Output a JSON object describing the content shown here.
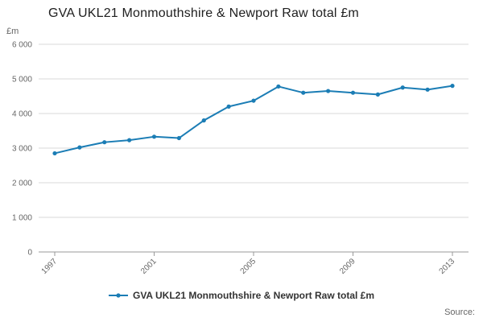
{
  "title": "GVA UKL21 Monmouthshire & Newport Raw total £m",
  "y_axis_unit": "£m",
  "source_label": "Source:",
  "legend_label": "GVA UKL21 Monmouthshire & Newport Raw total £m",
  "colors": {
    "line": "#1b7db5",
    "grid": "#d9d9d9",
    "axis": "#999999",
    "tick_text": "#666666",
    "title_text": "#202020",
    "background": "#ffffff"
  },
  "chart_data": {
    "type": "line",
    "title": "GVA UKL21 Monmouthshire & Newport Raw total £m",
    "ylabel": "£m",
    "xlabel": "",
    "grid": true,
    "legend_position": "bottom",
    "marker": "circle",
    "ylim": [
      0,
      6000
    ],
    "x": [
      1997,
      1998,
      1999,
      2000,
      2001,
      2002,
      2003,
      2004,
      2005,
      2006,
      2007,
      2008,
      2009,
      2010,
      2011,
      2012,
      2013
    ],
    "values": [
      2850,
      3020,
      3170,
      3230,
      3330,
      3290,
      3800,
      4200,
      4370,
      4780,
      4600,
      4650,
      4600,
      4550,
      4750,
      4690,
      4800
    ],
    "series": [
      {
        "name": "GVA UKL21 Monmouthshire & Newport Raw total £m",
        "values": [
          2850,
          3020,
          3170,
          3230,
          3330,
          3290,
          3800,
          4200,
          4370,
          4780,
          4600,
          4650,
          4600,
          4550,
          4750,
          4690,
          4800
        ]
      }
    ],
    "y_ticks": [
      0,
      1000,
      2000,
      3000,
      4000,
      5000,
      6000
    ],
    "y_tick_labels": [
      "0",
      "1 000",
      "2 000",
      "3 000",
      "4 000",
      "5 000",
      "6 000"
    ],
    "x_ticks": [
      1997,
      2001,
      2005,
      2009,
      2013
    ],
    "x_tick_labels": [
      "1997",
      "2001",
      "2005",
      "2009",
      "2013"
    ]
  }
}
